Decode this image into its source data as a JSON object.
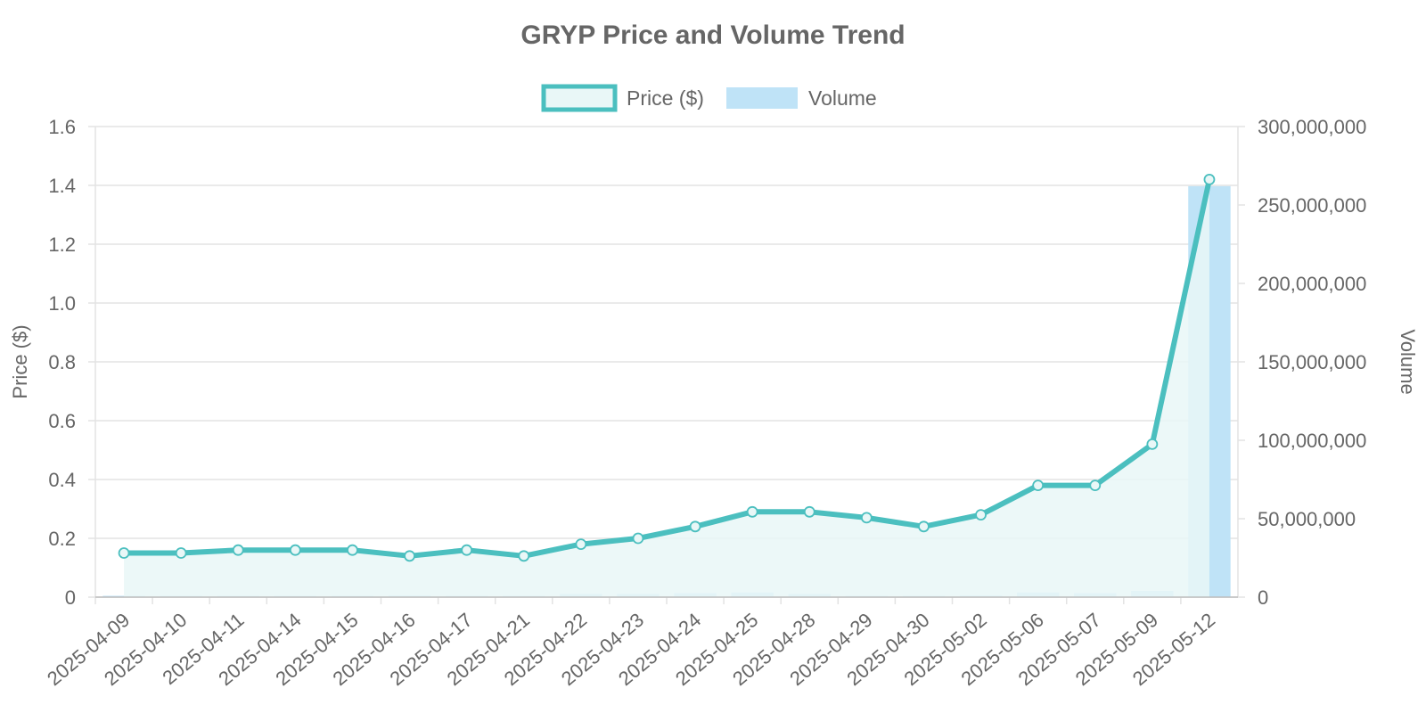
{
  "chart_data": {
    "type": "line",
    "title": "GRYP Price and Volume Trend",
    "categories": [
      "2025-04-09",
      "2025-04-10",
      "2025-04-11",
      "2025-04-14",
      "2025-04-15",
      "2025-04-16",
      "2025-04-17",
      "2025-04-21",
      "2025-04-22",
      "2025-04-23",
      "2025-04-24",
      "2025-04-25",
      "2025-04-28",
      "2025-04-29",
      "2025-04-30",
      "2025-05-02",
      "2025-05-06",
      "2025-05-07",
      "2025-05-09",
      "2025-05-12"
    ],
    "series": [
      {
        "name": "Price ($)",
        "type": "line",
        "axis": "left",
        "color": "#4bbfbf",
        "fill_color": "#e9f7f7",
        "values": [
          0.15,
          0.15,
          0.16,
          0.16,
          0.16,
          0.14,
          0.16,
          0.14,
          0.18,
          0.2,
          0.24,
          0.29,
          0.29,
          0.27,
          0.24,
          0.28,
          0.38,
          0.38,
          0.52,
          1.42
        ]
      },
      {
        "name": "Volume",
        "type": "bar",
        "axis": "right",
        "color": "#bfe3f7",
        "values": [
          800000,
          600000,
          300000,
          200000,
          200000,
          1000000,
          300000,
          300000,
          2000000,
          2000000,
          2500000,
          3000000,
          2000000,
          400000,
          400000,
          1000000,
          3000000,
          2500000,
          4000000,
          262000000
        ]
      }
    ],
    "ylabel": "Price ($)",
    "y2label": "Volume",
    "ylim": [
      0,
      1.6
    ],
    "y2lim": [
      0,
      300000000
    ],
    "yticks": [
      "0",
      "0.2",
      "0.4",
      "0.6",
      "0.8",
      "1.0",
      "1.2",
      "1.4",
      "1.6"
    ],
    "y2ticks": [
      "0",
      "50,000,000",
      "100,000,000",
      "150,000,000",
      "200,000,000",
      "250,000,000",
      "300,000,000"
    ],
    "grid": true,
    "legend_position": "top-center"
  }
}
